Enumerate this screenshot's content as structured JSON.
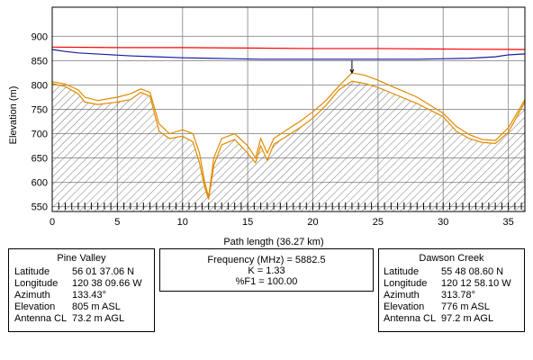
{
  "chart_data": {
    "type": "line",
    "title": "",
    "xlabel": "Path length (36.27 km)",
    "ylabel": "Elevation (m)",
    "xlim": [
      0,
      36.27
    ],
    "ylim": [
      540,
      960
    ],
    "x_ticks": [
      0,
      5,
      10,
      15,
      20,
      25,
      30,
      35
    ],
    "y_ticks": [
      550,
      600,
      650,
      700,
      750,
      800,
      850,
      900
    ],
    "grid": true,
    "legend": "none",
    "series": [
      {
        "name": "",
        "role": "los-line",
        "color": "#ff0000",
        "x": [
          0,
          5,
          10,
          15,
          20,
          25,
          30,
          36.27
        ],
        "y": [
          878,
          877,
          877,
          876,
          875,
          875,
          874,
          873
        ]
      },
      {
        "name": "",
        "role": "fresnel-clearance",
        "color": "#1a1aa0",
        "x": [
          0,
          1,
          2,
          4,
          6,
          8,
          10,
          12,
          14,
          16,
          18,
          20,
          22,
          24,
          26,
          28,
          30,
          32,
          34,
          35,
          36.27
        ],
        "y": [
          873,
          869,
          866,
          863,
          860,
          858,
          856,
          855,
          854,
          853,
          853,
          853,
          853,
          853,
          853,
          853,
          854,
          855,
          858,
          862,
          864
        ]
      },
      {
        "name": "",
        "role": "terrain-upper",
        "color": "#e08a00",
        "x": [
          0,
          1,
          2,
          2.5,
          3.5,
          5,
          6,
          6.8,
          7.5,
          8.2,
          9,
          10,
          10.8,
          11.3,
          11.7,
          12,
          12.4,
          13,
          14,
          15,
          15.6,
          16,
          16.5,
          17,
          18,
          19,
          20,
          21,
          22,
          23,
          24,
          25,
          26,
          28,
          30,
          31,
          32,
          33,
          34,
          35,
          36.27
        ],
        "y": [
          807,
          802,
          790,
          775,
          768,
          775,
          782,
          792,
          785,
          720,
          700,
          708,
          700,
          660,
          600,
          570,
          650,
          690,
          700,
          675,
          650,
          690,
          660,
          690,
          708,
          725,
          745,
          768,
          798,
          825,
          820,
          810,
          798,
          775,
          742,
          715,
          698,
          688,
          686,
          712,
          770
        ]
      },
      {
        "name": "",
        "role": "terrain-lower",
        "color": "#e08a00",
        "x": [
          0,
          1,
          2,
          2.5,
          3.5,
          5,
          6,
          6.8,
          7.5,
          8.2,
          9,
          10,
          10.8,
          11.3,
          11.7,
          12,
          12.4,
          13,
          14,
          15,
          15.6,
          16,
          16.5,
          17,
          18,
          19,
          20,
          21,
          22,
          23,
          24,
          25,
          26,
          28,
          30,
          31,
          32,
          33,
          34,
          35,
          36.27
        ],
        "y": [
          803,
          797,
          782,
          765,
          760,
          765,
          770,
          785,
          777,
          705,
          690,
          695,
          683,
          640,
          590,
          565,
          635,
          677,
          688,
          660,
          640,
          675,
          645,
          678,
          695,
          712,
          732,
          758,
          790,
          808,
          803,
          795,
          784,
          762,
          735,
          705,
          690,
          682,
          680,
          703,
          765
        ]
      }
    ],
    "annotations": [
      {
        "type": "marker",
        "x": 23,
        "y": 825,
        "label": ""
      }
    ]
  },
  "site_left": {
    "name": "Pine Valley",
    "rows": [
      {
        "key": "Latitude",
        "value": "56 01 37.06 N"
      },
      {
        "key": "Longitude",
        "value": "120 38 09.66 W"
      },
      {
        "key": "Azimuth",
        "value": "133.43°"
      },
      {
        "key": "Elevation",
        "value": "805 m ASL"
      },
      {
        "key": "Antenna CL",
        "value": "73.2 m AGL"
      }
    ]
  },
  "site_right": {
    "name": "Dawson Creek",
    "rows": [
      {
        "key": "Latitude",
        "value": "55 48 08.60 N"
      },
      {
        "key": "Longitude",
        "value": "120 12 58.10 W"
      },
      {
        "key": "Azimuth",
        "value": "313.78°"
      },
      {
        "key": "Elevation",
        "value": "776 m ASL"
      },
      {
        "key": "Antenna CL",
        "value": "97.2 m AGL"
      }
    ]
  },
  "link": {
    "frequency": "Frequency (MHz) = 5882.5",
    "k_factor": "K = 1.33",
    "fresnel": "%F1 = 100.00"
  }
}
